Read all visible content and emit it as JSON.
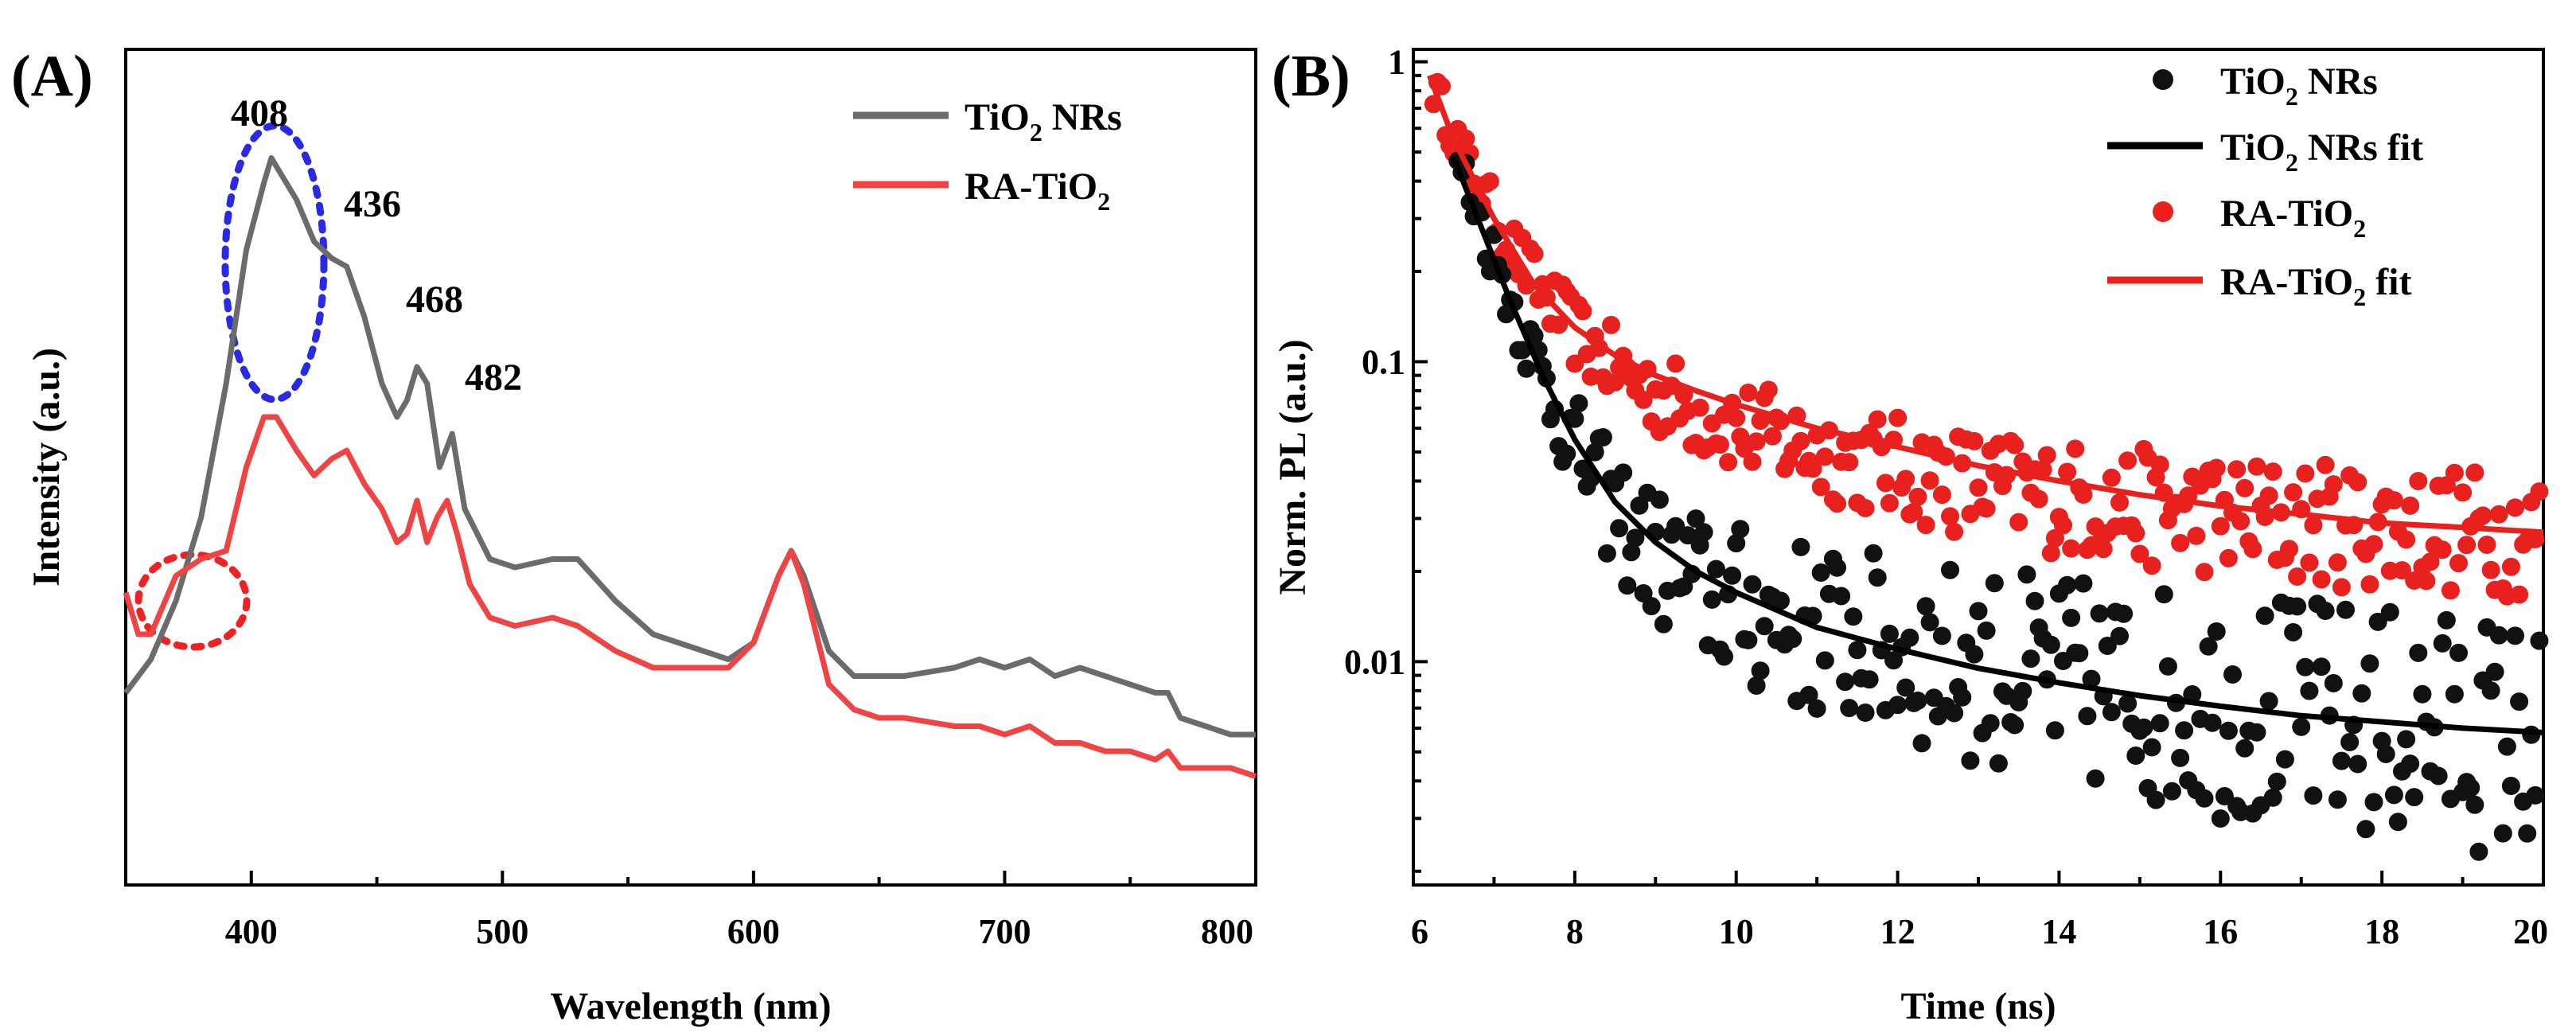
{
  "panel_a": {
    "label": "(A)",
    "xlabel": "Wavelength (nm)",
    "ylabel": "Intensity (a.u.)",
    "legend": [
      {
        "pre": "TiO",
        "sub": "2",
        "post": " NRs",
        "color": "#6b6b6b"
      },
      {
        "pre": "RA-TiO",
        "sub": "2",
        "post": "",
        "color": "#f04444"
      }
    ],
    "annotations": [
      "408",
      "436",
      "468",
      "482"
    ]
  },
  "panel_b": {
    "label": "(B)",
    "xlabel": "Time (ns)",
    "ylabel": "Norm. PL (a.u.)",
    "legend": [
      {
        "pre": "TiO",
        "sub": "2",
        "post": " NRs",
        "kind": "scatter",
        "color": "#111111"
      },
      {
        "pre": "TiO",
        "sub": "2",
        "post": " NRs fit",
        "kind": "line",
        "color": "#000000"
      },
      {
        "pre": "RA-TiO",
        "sub": "2",
        "post": "",
        "kind": "scatter",
        "color": "#e8201e"
      },
      {
        "pre": "RA-TiO",
        "sub": "2",
        "post": " fit",
        "kind": "line",
        "color": "#e8201e"
      }
    ]
  },
  "chart_data": [
    {
      "type": "line",
      "title": "",
      "xlabel": "Wavelength (nm)",
      "ylabel": "Intensity (a.u.)",
      "xlim": [
        350,
        800
      ],
      "ylim": [
        0,
        1
      ],
      "xticks": [
        "400",
        "500",
        "600",
        "700",
        "800"
      ],
      "yticks_shown": false,
      "legend_position": "top-right",
      "annotations": [
        {
          "text": "408",
          "x": 408
        },
        {
          "text": "436",
          "x": 436
        },
        {
          "text": "468",
          "x": 468
        },
        {
          "text": "482",
          "x": 482
        }
      ],
      "series": [
        {
          "name": "TiO2 NRs",
          "color": "#6b6b6b",
          "x": [
            350,
            360,
            370,
            380,
            390,
            398,
            405,
            408,
            412,
            418,
            425,
            432,
            438,
            445,
            452,
            458,
            462,
            466,
            470,
            475,
            480,
            485,
            495,
            505,
            520,
            530,
            545,
            560,
            580,
            590,
            600,
            610,
            615,
            620,
            630,
            640,
            650,
            660,
            680,
            690,
            700,
            710,
            720,
            730,
            740,
            750,
            760,
            765,
            770,
            780,
            790,
            800
          ],
          "y": [
            0.23,
            0.27,
            0.34,
            0.44,
            0.6,
            0.76,
            0.84,
            0.87,
            0.85,
            0.82,
            0.77,
            0.75,
            0.74,
            0.68,
            0.6,
            0.56,
            0.58,
            0.62,
            0.6,
            0.5,
            0.54,
            0.45,
            0.39,
            0.38,
            0.39,
            0.39,
            0.34,
            0.3,
            0.28,
            0.27,
            0.29,
            0.37,
            0.4,
            0.37,
            0.28,
            0.25,
            0.25,
            0.25,
            0.26,
            0.27,
            0.26,
            0.27,
            0.25,
            0.26,
            0.25,
            0.24,
            0.23,
            0.23,
            0.2,
            0.19,
            0.18,
            0.18
          ]
        },
        {
          "name": "RA-TiO2",
          "color": "#f04444",
          "x": [
            350,
            355,
            360,
            370,
            380,
            390,
            398,
            405,
            410,
            418,
            425,
            432,
            438,
            445,
            452,
            458,
            462,
            466,
            470,
            474,
            478,
            482,
            487,
            495,
            505,
            520,
            530,
            545,
            560,
            580,
            590,
            600,
            610,
            615,
            620,
            630,
            640,
            650,
            660,
            680,
            690,
            700,
            710,
            720,
            730,
            740,
            750,
            760,
            765,
            770,
            780,
            790,
            800
          ],
          "y": [
            0.35,
            0.3,
            0.3,
            0.37,
            0.39,
            0.4,
            0.5,
            0.56,
            0.56,
            0.52,
            0.49,
            0.51,
            0.52,
            0.48,
            0.45,
            0.41,
            0.42,
            0.46,
            0.41,
            0.44,
            0.46,
            0.42,
            0.36,
            0.32,
            0.31,
            0.32,
            0.31,
            0.28,
            0.26,
            0.26,
            0.26,
            0.29,
            0.37,
            0.4,
            0.36,
            0.24,
            0.21,
            0.2,
            0.2,
            0.19,
            0.19,
            0.18,
            0.19,
            0.17,
            0.17,
            0.16,
            0.16,
            0.15,
            0.16,
            0.14,
            0.14,
            0.14,
            0.13
          ]
        }
      ]
    },
    {
      "type": "scatter",
      "title": "",
      "xlabel": "Time (ns)",
      "ylabel": "Norm. PL (a.u.)",
      "xlim": [
        6,
        20
      ],
      "ylim": [
        0.0018,
        1.1
      ],
      "yscale": "log",
      "xticks": [
        "6",
        "8",
        "10",
        "12",
        "14",
        "16",
        "18",
        "20"
      ],
      "yticks": [
        "0.01",
        "0.1",
        "1"
      ],
      "legend_position": "top-right",
      "series": [
        {
          "name": "TiO2 NRs",
          "kind": "scatter",
          "color": "#111111",
          "model": "approx. normalized decay, ~280 scattered points with noise growing at long times"
        },
        {
          "name": "TiO2 NRs fit",
          "kind": "line",
          "color": "#000000",
          "x": [
            6.5,
            6.8,
            7.2,
            7.6,
            8.0,
            8.5,
            9.0,
            9.5,
            10,
            11,
            12,
            13,
            14,
            15,
            16,
            17,
            18,
            19,
            20
          ],
          "y": [
            0.48,
            0.3,
            0.16,
            0.09,
            0.055,
            0.034,
            0.025,
            0.02,
            0.017,
            0.013,
            0.011,
            0.0095,
            0.0085,
            0.0077,
            0.0071,
            0.0066,
            0.0063,
            0.006,
            0.0058
          ]
        },
        {
          "name": "RA-TiO2",
          "kind": "scatter",
          "color": "#e8201e",
          "model": "approx. normalized decay, ~280 scattered points with noise growing at long times"
        },
        {
          "name": "RA-TiO2 fit",
          "kind": "line",
          "color": "#e8201e",
          "x": [
            6.2,
            6.5,
            7.0,
            7.5,
            8.0,
            8.5,
            9.0,
            9.5,
            10,
            11,
            12,
            13,
            14,
            15,
            16,
            17,
            18,
            19,
            20
          ],
          "y": [
            0.9,
            0.55,
            0.3,
            0.18,
            0.13,
            0.105,
            0.09,
            0.08,
            0.072,
            0.06,
            0.052,
            0.045,
            0.04,
            0.036,
            0.033,
            0.031,
            0.029,
            0.028,
            0.027
          ]
        }
      ]
    }
  ]
}
